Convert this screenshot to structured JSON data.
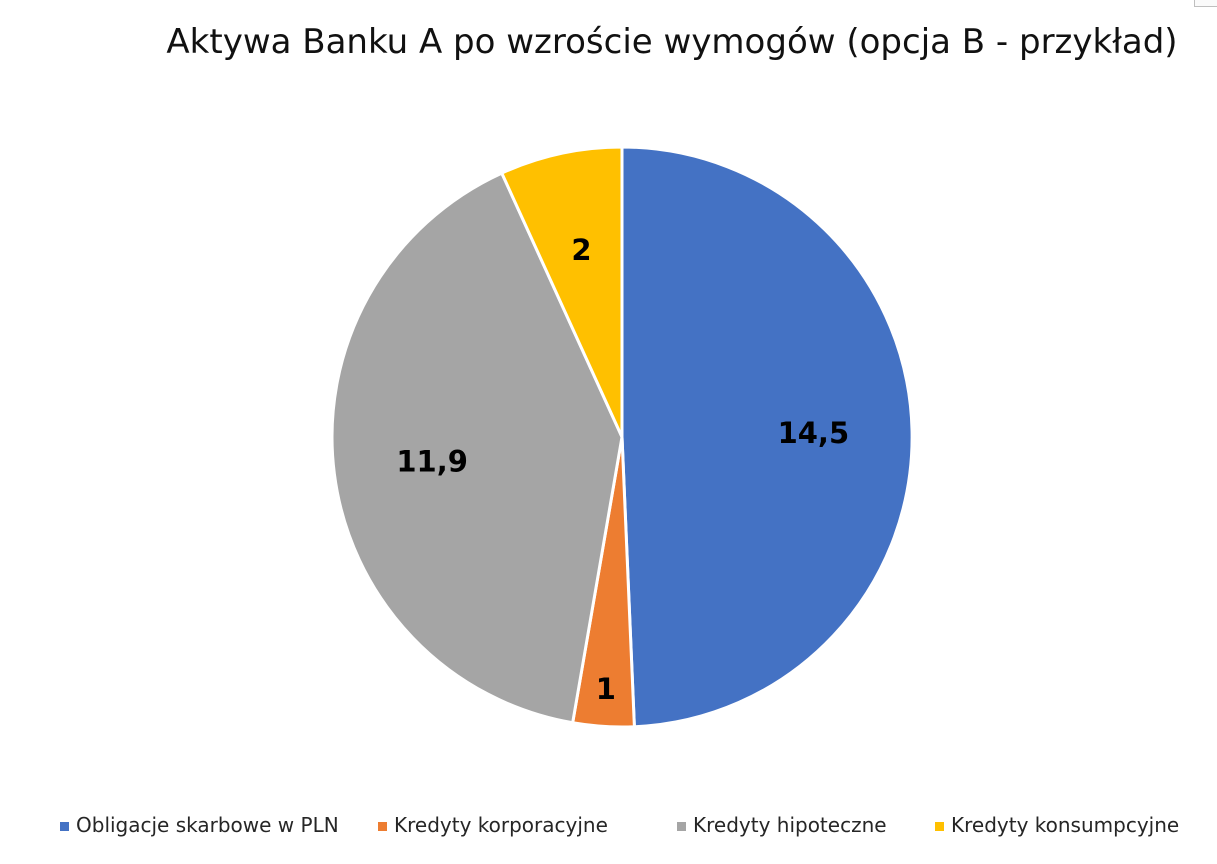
{
  "chart_data": {
    "type": "pie",
    "title": "Aktywa Banku A po wzroście wymogów (opcja B - przykład)",
    "categories": [
      "Obligacje skarbowe w PLN",
      "Kredyty korporacyjne",
      "Kredyty hipoteczne",
      "Kredyty konsumpcyjne"
    ],
    "values": [
      14.5,
      1,
      11.9,
      2
    ],
    "data_labels": [
      "14,5",
      "1",
      "11,9",
      "2"
    ],
    "colors": [
      "#4472C4",
      "#ED7D31",
      "#A5A5A5",
      "#FFC000"
    ],
    "start_angle_deg": 0,
    "direction": "clockwise",
    "legend_position": "bottom"
  }
}
